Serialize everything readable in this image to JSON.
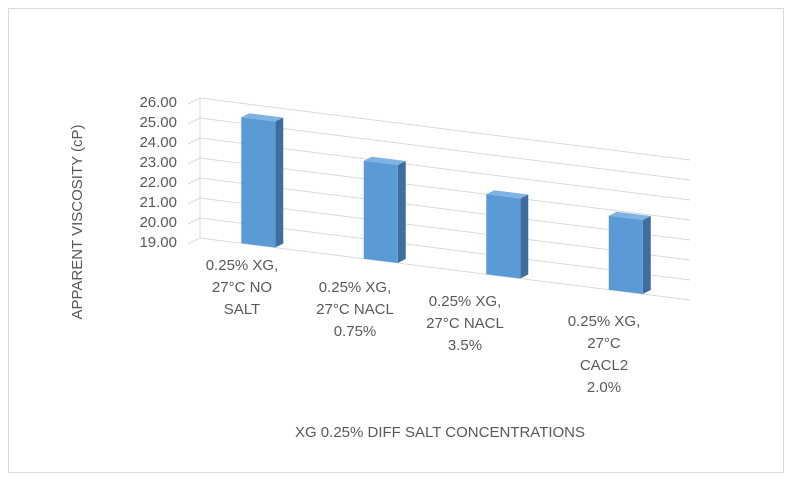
{
  "chart_data": {
    "type": "bar",
    "title": "",
    "xlabel": "XG 0.25%  DIFF SALT CONCENTRATIONS",
    "ylabel": "APPARENT VISCOSITY  (cP)",
    "ylim": [
      19,
      26
    ],
    "yticks": [
      "19.00",
      "20.00",
      "21.00",
      "22.00",
      "23.00",
      "24.00",
      "25.00",
      "26.00"
    ],
    "categories": [
      [
        "0.25% XG,",
        "27°C NO",
        "SALT"
      ],
      [
        "0.25% XG,",
        "27°C NACL",
        "0.75%"
      ],
      [
        "0.25% XG,",
        "27°C NACL",
        "3.5%"
      ],
      [
        "0.25% XG,",
        "27°C",
        "CACL2",
        "2.0%"
      ]
    ],
    "values": [
      25.3,
      23.9,
      23.0,
      22.7
    ],
    "grid": true,
    "legend": "none",
    "colors": {
      "front": "#5b9bd5",
      "side": "#3e6e9f",
      "top": "#7fb3e3",
      "grid": "#d9d9d9",
      "text": "#595959"
    }
  }
}
